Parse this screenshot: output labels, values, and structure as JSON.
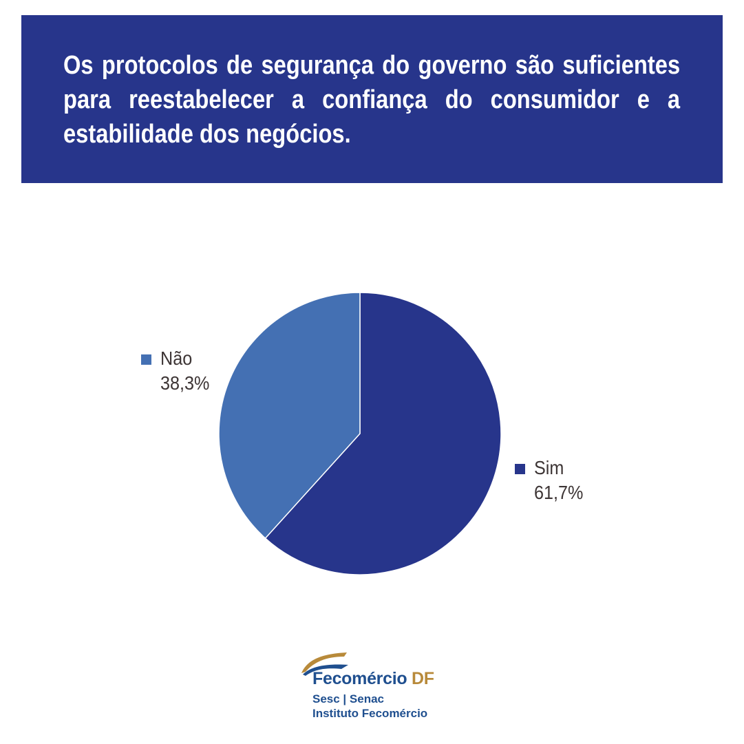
{
  "header": {
    "title": "Os protocolos de segurança do governo são suficientes para reestabelecer a confiança do consumidor e a estabilidade dos negócios."
  },
  "chart_data": {
    "type": "pie",
    "title": "Os protocolos de segurança do governo são suficientes para reestabelecer a confiança do consumidor e a estabilidade dos negócios.",
    "slices": [
      {
        "label": "Sim",
        "value": 61.7,
        "value_label": "61,7%",
        "color": "#27358b"
      },
      {
        "label": "Não",
        "value": 38.3,
        "value_label": "38,3%",
        "color": "#4470b3"
      }
    ],
    "start_angle": "12 o'clock",
    "direction": "clockwise",
    "legend": "labels beside slices"
  },
  "colors": {
    "banner": "#27358b",
    "text_dark": "#3d3535",
    "logo_blue": "#1f4f8f",
    "logo_gold": "#b88a3a"
  },
  "logo": {
    "brand": "Fecomércio",
    "brand_suffix": "DF",
    "line1": "Sesc | Senac",
    "line2": "Instituto Fecomércio"
  }
}
